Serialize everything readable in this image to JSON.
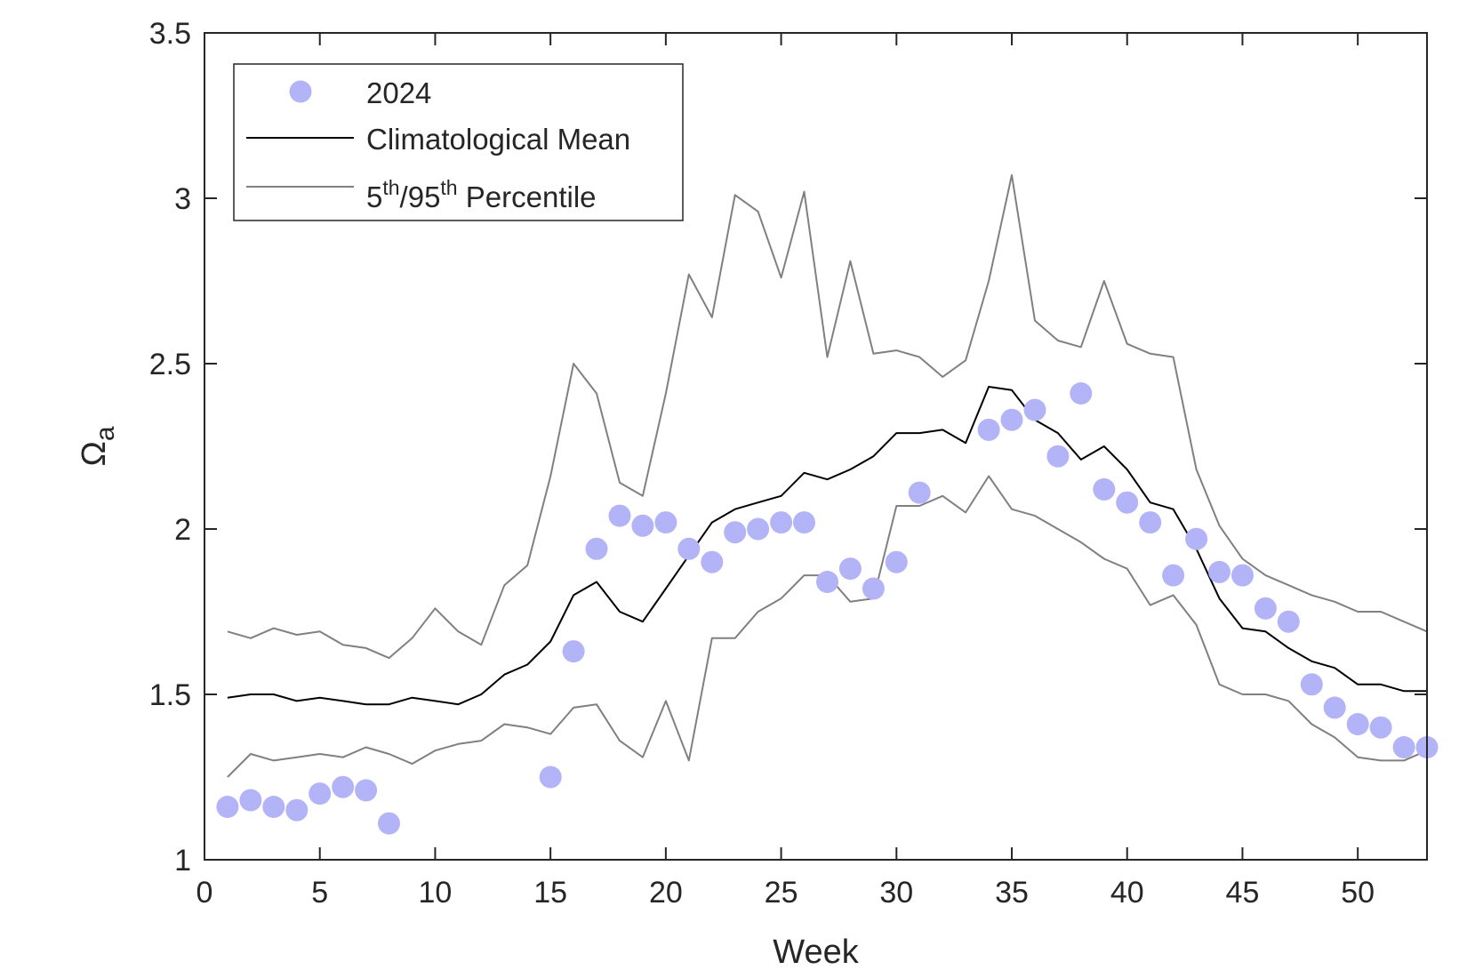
{
  "chart_data": {
    "type": "line",
    "title": "",
    "xlabel": "Week",
    "ylabel": "Ω",
    "ylabel_subscript": "a",
    "xlim": [
      0,
      53
    ],
    "ylim": [
      1,
      3.5
    ],
    "xticks": [
      0,
      5,
      10,
      15,
      20,
      25,
      30,
      35,
      40,
      45,
      50
    ],
    "yticks": [
      1,
      1.5,
      2,
      2.5,
      3,
      3.5
    ],
    "xtick_labels": [
      "0",
      "5",
      "10",
      "15",
      "20",
      "25",
      "30",
      "35",
      "40",
      "45",
      "50"
    ],
    "ytick_labels": [
      "1",
      "1.5",
      "2",
      "2.5",
      "3",
      "3.5"
    ],
    "grid": false,
    "legend_position": "top-left",
    "legend": {
      "scatter_label": "2024",
      "mean_label": "Climatological Mean",
      "pct_label": {
        "p1": "5",
        "sup1": "th",
        "mid": "/95",
        "sup2": "th",
        "rest": " Percentile"
      }
    },
    "colors": {
      "scatter": "#b3b3f7",
      "mean": "#000000",
      "percentile": "#808080",
      "axis": "#262626"
    },
    "series": [
      {
        "name": "2024",
        "kind": "scatter",
        "x": [
          1,
          2,
          3,
          4,
          5,
          6,
          7,
          8,
          15,
          16,
          17,
          18,
          19,
          20,
          21,
          22,
          23,
          24,
          25,
          26,
          27,
          28,
          29,
          30,
          31,
          34,
          35,
          36,
          37,
          38,
          39,
          40,
          41,
          42,
          43,
          44,
          45,
          46,
          47,
          48,
          49,
          50,
          51,
          52,
          53
        ],
        "y": [
          1.16,
          1.18,
          1.16,
          1.15,
          1.2,
          1.22,
          1.21,
          1.11,
          1.25,
          1.63,
          1.94,
          2.04,
          2.01,
          2.02,
          1.94,
          1.9,
          1.99,
          2.0,
          2.02,
          2.02,
          1.84,
          1.88,
          1.82,
          1.9,
          2.11,
          2.3,
          2.33,
          2.36,
          2.22,
          2.41,
          2.12,
          2.08,
          2.02,
          1.86,
          1.97,
          1.87,
          1.86,
          1.76,
          1.72,
          1.53,
          1.46,
          1.41,
          1.4,
          1.34,
          1.34
        ]
      },
      {
        "name": "Climatological Mean",
        "kind": "line",
        "x": [
          1,
          2,
          3,
          4,
          5,
          6,
          7,
          8,
          9,
          10,
          11,
          12,
          13,
          14,
          15,
          16,
          17,
          18,
          19,
          20,
          21,
          22,
          23,
          24,
          25,
          26,
          27,
          28,
          29,
          30,
          31,
          32,
          33,
          34,
          35,
          36,
          37,
          38,
          39,
          40,
          41,
          42,
          43,
          44,
          45,
          46,
          47,
          48,
          49,
          50,
          51,
          52,
          53
        ],
        "y": [
          1.49,
          1.5,
          1.5,
          1.48,
          1.49,
          1.48,
          1.47,
          1.47,
          1.49,
          1.48,
          1.47,
          1.5,
          1.56,
          1.59,
          1.66,
          1.8,
          1.84,
          1.75,
          1.72,
          1.82,
          1.92,
          2.02,
          2.06,
          2.08,
          2.1,
          2.17,
          2.15,
          2.18,
          2.22,
          2.29,
          2.29,
          2.3,
          2.26,
          2.43,
          2.42,
          2.33,
          2.29,
          2.21,
          2.25,
          2.18,
          2.08,
          2.06,
          1.94,
          1.79,
          1.7,
          1.69,
          1.64,
          1.6,
          1.58,
          1.53,
          1.53,
          1.51,
          1.51
        ]
      },
      {
        "name": "95th Percentile",
        "kind": "line",
        "x": [
          1,
          2,
          3,
          4,
          5,
          6,
          7,
          8,
          9,
          10,
          11,
          12,
          13,
          14,
          15,
          16,
          17,
          18,
          19,
          20,
          21,
          22,
          23,
          24,
          25,
          26,
          27,
          28,
          29,
          30,
          31,
          32,
          33,
          34,
          35,
          36,
          37,
          38,
          39,
          40,
          41,
          42,
          43,
          44,
          45,
          46,
          47,
          48,
          49,
          50,
          51,
          52,
          53
        ],
        "y": [
          1.69,
          1.67,
          1.7,
          1.68,
          1.69,
          1.65,
          1.64,
          1.61,
          1.67,
          1.76,
          1.69,
          1.65,
          1.83,
          1.89,
          2.16,
          2.5,
          2.41,
          2.14,
          2.1,
          2.41,
          2.77,
          2.64,
          3.01,
          2.96,
          2.76,
          3.02,
          2.52,
          2.81,
          2.53,
          2.54,
          2.52,
          2.46,
          2.51,
          2.75,
          3.07,
          2.63,
          2.57,
          2.55,
          2.75,
          2.56,
          2.53,
          2.52,
          2.18,
          2.01,
          1.91,
          1.86,
          1.83,
          1.8,
          1.78,
          1.75,
          1.75,
          1.72,
          1.69
        ]
      },
      {
        "name": "5th Percentile",
        "kind": "line",
        "x": [
          1,
          2,
          3,
          4,
          5,
          6,
          7,
          8,
          9,
          10,
          11,
          12,
          13,
          14,
          15,
          16,
          17,
          18,
          19,
          20,
          21,
          22,
          23,
          24,
          25,
          26,
          27,
          28,
          29,
          30,
          31,
          32,
          33,
          34,
          35,
          36,
          37,
          38,
          39,
          40,
          41,
          42,
          43,
          44,
          45,
          46,
          47,
          48,
          49,
          50,
          51,
          52,
          53
        ],
        "y": [
          1.25,
          1.32,
          1.3,
          1.31,
          1.32,
          1.31,
          1.34,
          1.32,
          1.29,
          1.33,
          1.35,
          1.36,
          1.41,
          1.4,
          1.38,
          1.46,
          1.47,
          1.36,
          1.31,
          1.48,
          1.3,
          1.67,
          1.67,
          1.75,
          1.79,
          1.86,
          1.86,
          1.78,
          1.79,
          2.07,
          2.07,
          2.1,
          2.05,
          2.16,
          2.06,
          2.04,
          2.0,
          1.96,
          1.91,
          1.88,
          1.77,
          1.8,
          1.71,
          1.53,
          1.5,
          1.5,
          1.48,
          1.41,
          1.37,
          1.31,
          1.3,
          1.3,
          1.33
        ]
      }
    ]
  }
}
